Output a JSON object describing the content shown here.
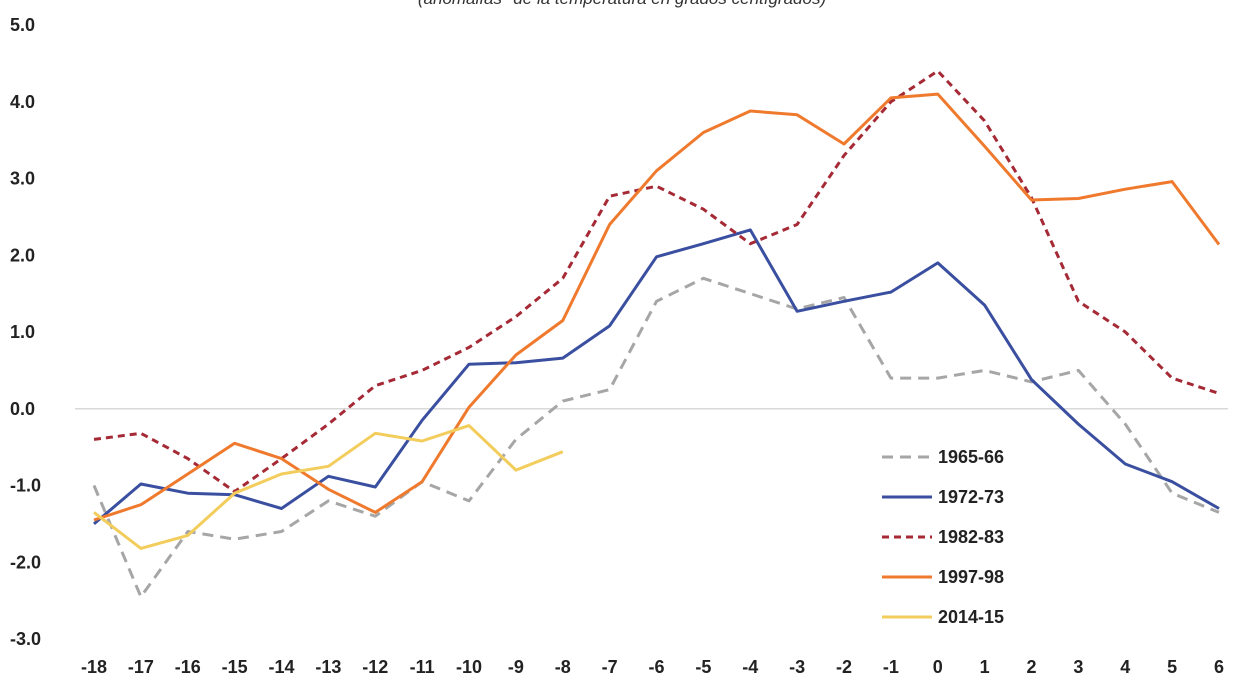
{
  "chart_data": {
    "type": "line",
    "subtitle": "(anomalías* de la temperatura en grados centígrados)",
    "ylim": [
      -3.0,
      5.0
    ],
    "yticks": [
      "5.0",
      "4.0",
      "3.0",
      "2.0",
      "1.0",
      "0.0",
      "-1.0",
      "-2.0",
      "-3.0"
    ],
    "ytick_values": [
      5,
      4,
      3,
      2,
      1,
      0,
      -1,
      -2,
      -3
    ],
    "x": [
      -18,
      -17,
      -16,
      -15,
      -14,
      -13,
      -12,
      -11,
      -10,
      -9,
      -8,
      -7,
      -6,
      -5,
      -4,
      -3,
      -2,
      -1,
      0,
      1,
      2,
      3,
      4,
      5,
      6
    ],
    "xtick_labels": [
      "-18",
      "-17",
      "-16",
      "-15",
      "-14",
      "-13",
      "-12",
      "-11",
      "-10",
      "-9",
      "-8",
      "-7",
      "-6",
      "-5",
      "-4",
      "-3",
      "-2",
      "-1",
      "0",
      "1",
      "2",
      "3",
      "4",
      "5",
      "6"
    ],
    "zero_line": true,
    "grid": false,
    "legend_position": "bottom-right",
    "series": [
      {
        "name": "1965-66",
        "color": "#a6a6a6",
        "dash": "dashed",
        "values": [
          -1.0,
          -2.45,
          -1.6,
          -1.7,
          -1.6,
          -1.2,
          -1.4,
          -0.95,
          -1.2,
          -0.4,
          0.1,
          0.25,
          1.4,
          1.7,
          1.5,
          1.3,
          1.45,
          0.4,
          0.4,
          0.5,
          0.35,
          0.5,
          -0.2,
          -1.1,
          -1.35
        ]
      },
      {
        "name": "1972-73",
        "color": "#3a4fa0",
        "dash": "solid",
        "values": [
          -1.5,
          -0.98,
          -1.1,
          -1.12,
          -1.3,
          -0.88,
          -1.02,
          -0.15,
          0.58,
          0.6,
          0.66,
          1.08,
          1.98,
          2.15,
          2.33,
          1.27,
          1.4,
          1.52,
          1.9,
          1.35,
          0.38,
          -0.2,
          -0.72,
          -0.95,
          -1.3
        ]
      },
      {
        "name": "1982-83",
        "color": "#a52a36",
        "dash": "short-dash",
        "values": [
          -0.4,
          -0.32,
          -0.65,
          -1.08,
          -0.65,
          -0.2,
          0.3,
          0.5,
          0.8,
          1.2,
          1.7,
          2.77,
          2.9,
          2.6,
          2.15,
          2.4,
          3.3,
          4.0,
          4.4,
          3.75,
          2.75,
          1.4,
          1.0,
          0.4,
          0.2
        ]
      },
      {
        "name": "1997-98",
        "color": "#ef7a2e",
        "dash": "solid",
        "values": [
          -1.45,
          -1.25,
          -0.85,
          -0.45,
          -0.65,
          -1.05,
          -1.35,
          -0.95,
          0.02,
          0.7,
          1.15,
          2.4,
          3.1,
          3.6,
          3.88,
          3.83,
          3.45,
          4.05,
          4.1,
          3.42,
          2.72,
          2.74,
          2.86,
          2.96,
          2.14
        ]
      },
      {
        "name": "2014-15",
        "color": "#f3cd5c",
        "dash": "solid",
        "values": [
          -1.35,
          -1.82,
          -1.65,
          -1.1,
          -0.85,
          -0.75,
          -0.32,
          -0.42,
          -0.22,
          -0.8,
          -0.56,
          null,
          null,
          null,
          null,
          null,
          null,
          null,
          null,
          null,
          null,
          null,
          null,
          null,
          null
        ]
      }
    ]
  }
}
